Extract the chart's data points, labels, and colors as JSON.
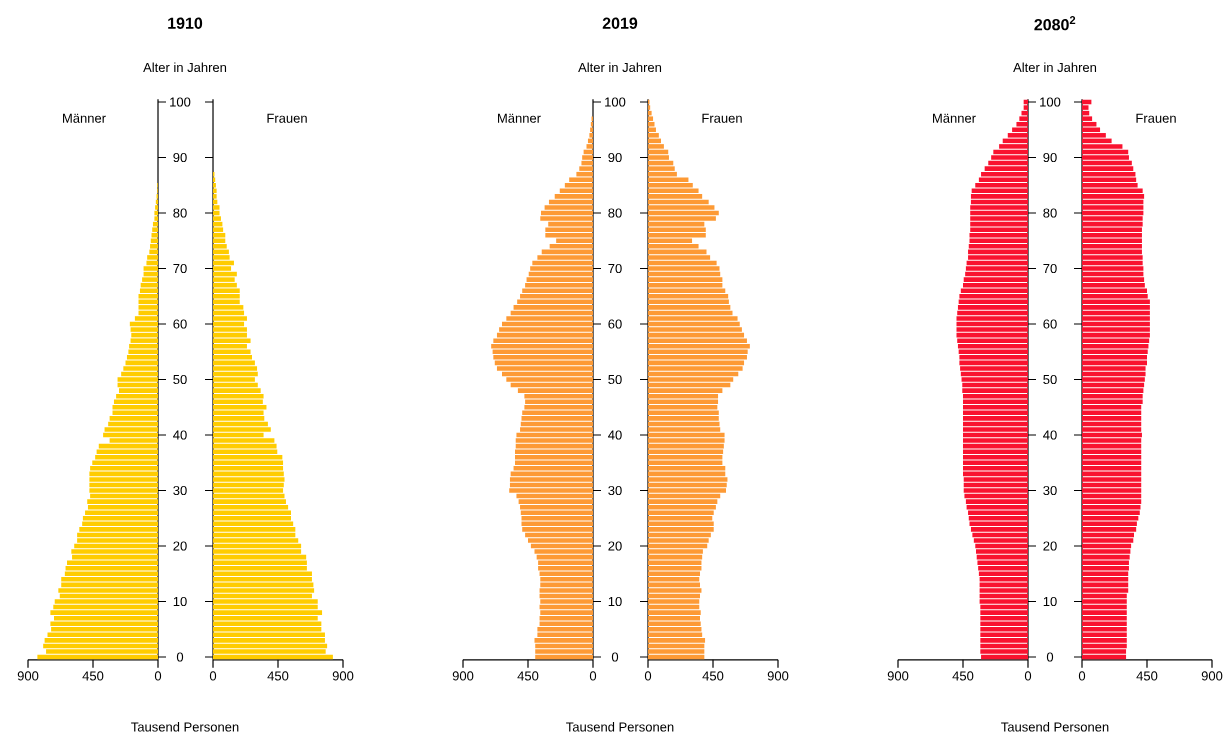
{
  "chart_data": [
    {
      "type": "bar",
      "orientation": "horizontal",
      "title": "1910",
      "ylabel": "Alter in Jahren",
      "xlabel": "Tausend Personen",
      "xlim": [
        900,
        0
      ],
      "xticks": [
        900,
        450,
        0
      ],
      "categories": [
        "100",
        null,
        null,
        null,
        null,
        null,
        null,
        null,
        null,
        null,
        "90",
        null,
        null,
        null,
        null,
        null,
        null,
        null,
        null,
        null,
        "80",
        null,
        null,
        null,
        null,
        null,
        null,
        null,
        null,
        null,
        "70",
        null,
        null,
        null,
        null,
        null,
        null,
        null,
        null,
        null,
        "60",
        null,
        null,
        null,
        null,
        null,
        null,
        null,
        null,
        null,
        "50",
        null,
        null,
        null,
        null,
        null,
        null,
        null,
        null,
        null,
        "40",
        null,
        null,
        null,
        null,
        null,
        null,
        null,
        null,
        null,
        "30",
        null,
        null,
        null,
        null,
        null,
        null,
        null,
        null,
        null,
        "20",
        null,
        null,
        null,
        null,
        null,
        null,
        null,
        null,
        null,
        "10",
        null,
        null,
        null,
        null,
        null,
        null,
        null,
        null,
        null,
        "0"
      ],
      "series": [
        {
          "name": "Männer",
          "color": "#ffcc00",
          "values": [
            0,
            0,
            0,
            0,
            0,
            0,
            0,
            0,
            0,
            0,
            0,
            0,
            0,
            0,
            0,
            5,
            5,
            10,
            15,
            20,
            25,
            25,
            35,
            40,
            45,
            50,
            55,
            60,
            75,
            80,
            100,
            100,
            110,
            120,
            125,
            135,
            135,
            135,
            135,
            160,
            195,
            190,
            185,
            190,
            200,
            205,
            215,
            225,
            240,
            255,
            280,
            280,
            270,
            290,
            305,
            315,
            315,
            335,
            345,
            370,
            380,
            335,
            410,
            425,
            435,
            455,
            470,
            475,
            475,
            475,
            475,
            470,
            490,
            485,
            505,
            520,
            525,
            545,
            560,
            560,
            580,
            600,
            595,
            630,
            640,
            645,
            670,
            670,
            690,
            680,
            715,
            725,
            745,
            720,
            745,
            740,
            765,
            785,
            795,
            775,
            835
          ]
        }
      ]
    },
    {
      "type": "bar",
      "orientation": "horizontal",
      "tick_labels": "x",
      "xlim": [
        0,
        900
      ],
      "xticks": [
        0,
        450,
        900
      ],
      "categories": [
        "100",
        null,
        null,
        null,
        null,
        null,
        null,
        null,
        null,
        null,
        "90",
        null,
        null,
        null,
        null,
        null,
        null,
        null,
        null,
        null,
        "80",
        null,
        null,
        null,
        null,
        null,
        null,
        null,
        null,
        null,
        "70",
        null,
        null,
        null,
        null,
        null,
        null,
        null,
        null,
        null,
        "60",
        null,
        null,
        null,
        null,
        null,
        null,
        null,
        null,
        null,
        "50",
        null,
        null,
        null,
        null,
        null,
        null,
        null,
        null,
        null,
        "40",
        null,
        null,
        null,
        null,
        null,
        null,
        null,
        null,
        null,
        "30",
        null,
        null,
        null,
        null,
        null,
        null,
        null,
        null,
        null,
        "20",
        null,
        null,
        null,
        null,
        null,
        null,
        null,
        null,
        null,
        "10",
        null,
        null,
        null,
        null,
        null,
        null,
        null,
        null,
        null,
        "0"
      ],
      "series": [
        {
          "name": "Frauen",
          "color": "#ffcc00",
          "values": [
            0,
            0,
            0,
            0,
            0,
            0,
            0,
            0,
            0,
            0,
            0,
            0,
            0,
            10,
            15,
            20,
            25,
            25,
            30,
            45,
            45,
            55,
            65,
            70,
            85,
            85,
            95,
            110,
            115,
            145,
            125,
            165,
            150,
            165,
            185,
            185,
            185,
            210,
            215,
            235,
            215,
            235,
            235,
            260,
            235,
            260,
            270,
            290,
            305,
            310,
            290,
            310,
            330,
            350,
            345,
            370,
            350,
            355,
            380,
            400,
            350,
            425,
            440,
            445,
            480,
            485,
            485,
            490,
            495,
            490,
            485,
            495,
            505,
            520,
            540,
            540,
            555,
            570,
            570,
            590,
            610,
            610,
            645,
            650,
            650,
            685,
            685,
            695,
            700,
            685,
            725,
            725,
            755,
            725,
            750,
            750,
            775,
            775,
            790,
            780,
            830
          ]
        }
      ]
    },
    {
      "type": "bar",
      "orientation": "horizontal",
      "title": "2019",
      "ylabel": "Alter in Jahren",
      "xlabel": "Tausend Personen",
      "xlim": [
        900,
        0
      ],
      "xticks": [
        900,
        450,
        0
      ],
      "categories": [
        "100",
        null,
        null,
        null,
        null,
        null,
        null,
        null,
        null,
        null,
        "90",
        null,
        null,
        null,
        null,
        null,
        null,
        null,
        null,
        null,
        "80",
        null,
        null,
        null,
        null,
        null,
        null,
        null,
        null,
        null,
        "70",
        null,
        null,
        null,
        null,
        null,
        null,
        null,
        null,
        null,
        "60",
        null,
        null,
        null,
        null,
        null,
        null,
        null,
        null,
        null,
        "50",
        null,
        null,
        null,
        null,
        null,
        null,
        null,
        null,
        null,
        "40",
        null,
        null,
        null,
        null,
        null,
        null,
        null,
        null,
        null,
        "30",
        null,
        null,
        null,
        null,
        null,
        null,
        null,
        null,
        null,
        "20",
        null,
        null,
        null,
        null,
        null,
        null,
        null,
        null,
        null,
        "10",
        null,
        null,
        null,
        null,
        null,
        null,
        null,
        null,
        null,
        "0"
      ],
      "series": [
        {
          "name": "Männer",
          "color": "#fd9a35",
          "values": [
            0,
            0,
            0,
            10,
            15,
            20,
            25,
            35,
            45,
            65,
            75,
            80,
            95,
            115,
            165,
            195,
            230,
            265,
            305,
            335,
            360,
            365,
            310,
            330,
            330,
            255,
            300,
            355,
            385,
            420,
            435,
            445,
            460,
            470,
            490,
            505,
            525,
            550,
            570,
            600,
            630,
            650,
            665,
            690,
            705,
            695,
            690,
            680,
            665,
            630,
            600,
            570,
            520,
            475,
            470,
            475,
            490,
            495,
            500,
            505,
            530,
            535,
            535,
            540,
            540,
            540,
            550,
            570,
            575,
            575,
            580,
            530,
            515,
            505,
            500,
            495,
            495,
            490,
            470,
            450,
            430,
            405,
            390,
            380,
            380,
            370,
            365,
            365,
            370,
            370,
            365,
            370,
            365,
            370,
            370,
            385,
            385,
            405,
            400,
            400,
            400
          ]
        }
      ]
    },
    {
      "type": "bar",
      "orientation": "horizontal",
      "tick_labels": "x",
      "xlim": [
        0,
        900
      ],
      "xticks": [
        0,
        450,
        900
      ],
      "categories": [
        "100",
        null,
        null,
        null,
        null,
        null,
        null,
        null,
        null,
        null,
        "90",
        null,
        null,
        null,
        null,
        null,
        null,
        null,
        null,
        null,
        "80",
        null,
        null,
        null,
        null,
        null,
        null,
        null,
        null,
        null,
        "70",
        null,
        null,
        null,
        null,
        null,
        null,
        null,
        null,
        null,
        "60",
        null,
        null,
        null,
        null,
        null,
        null,
        null,
        null,
        null,
        "50",
        null,
        null,
        null,
        null,
        null,
        null,
        null,
        null,
        null,
        "40",
        null,
        null,
        null,
        null,
        null,
        null,
        null,
        null,
        null,
        "30",
        null,
        null,
        null,
        null,
        null,
        null,
        null,
        null,
        null,
        "20",
        null,
        null,
        null,
        null,
        null,
        null,
        null,
        null,
        null,
        "10",
        null,
        null,
        null,
        null,
        null,
        null,
        null,
        null,
        null,
        "0"
      ],
      "series": [
        {
          "name": "Frauen",
          "color": "#fd9a35",
          "values": [
            10,
            15,
            25,
            35,
            45,
            55,
            75,
            90,
            110,
            140,
            145,
            175,
            185,
            200,
            280,
            310,
            350,
            375,
            420,
            460,
            490,
            470,
            390,
            400,
            400,
            305,
            350,
            405,
            430,
            475,
            495,
            500,
            515,
            515,
            535,
            555,
            560,
            570,
            585,
            620,
            635,
            650,
            665,
            685,
            705,
            690,
            685,
            665,
            655,
            625,
            590,
            570,
            515,
            485,
            485,
            480,
            490,
            490,
            495,
            500,
            530,
            530,
            525,
            520,
            515,
            515,
            535,
            535,
            550,
            545,
            540,
            500,
            480,
            470,
            455,
            445,
            455,
            455,
            435,
            420,
            410,
            380,
            375,
            370,
            370,
            360,
            355,
            360,
            370,
            360,
            355,
            355,
            365,
            360,
            365,
            370,
            375,
            395,
            390,
            390,
            390
          ]
        }
      ]
    },
    {
      "type": "bar",
      "orientation": "horizontal",
      "title": "2080$^{2}$",
      "ylabel": "Alter in Jahren",
      "xlabel": "Tausend Personen",
      "xlim": [
        900,
        0
      ],
      "xticks": [
        900,
        450,
        0
      ],
      "categories": [
        "100",
        null,
        null,
        null,
        null,
        null,
        null,
        null,
        null,
        null,
        "90",
        null,
        null,
        null,
        null,
        null,
        null,
        null,
        null,
        null,
        "80",
        null,
        null,
        null,
        null,
        null,
        null,
        null,
        null,
        null,
        "70",
        null,
        null,
        null,
        null,
        null,
        null,
        null,
        null,
        null,
        "60",
        null,
        null,
        null,
        null,
        null,
        null,
        null,
        null,
        null,
        "50",
        null,
        null,
        null,
        null,
        null,
        null,
        null,
        null,
        null,
        "40",
        null,
        null,
        null,
        null,
        null,
        null,
        null,
        null,
        null,
        "30",
        null,
        null,
        null,
        null,
        null,
        null,
        null,
        null,
        null,
        "20",
        null,
        null,
        null,
        null,
        null,
        null,
        null,
        null,
        null,
        "10",
        null,
        null,
        null,
        null,
        null,
        null,
        null,
        null,
        null,
        "0"
      ],
      "series": [
        {
          "name": "Männer",
          "color": "#f9122f",
          "values": [
            30,
            30,
            45,
            60,
            80,
            110,
            140,
            175,
            200,
            240,
            255,
            275,
            300,
            325,
            340,
            365,
            390,
            395,
            395,
            400,
            400,
            400,
            400,
            400,
            405,
            405,
            410,
            415,
            415,
            425,
            430,
            435,
            445,
            450,
            465,
            475,
            480,
            485,
            490,
            495,
            495,
            495,
            495,
            490,
            485,
            480,
            475,
            475,
            470,
            465,
            460,
            455,
            455,
            450,
            450,
            450,
            450,
            450,
            450,
            450,
            450,
            450,
            450,
            450,
            450,
            450,
            450,
            450,
            445,
            445,
            445,
            440,
            430,
            425,
            415,
            410,
            405,
            395,
            385,
            375,
            365,
            360,
            355,
            350,
            345,
            340,
            335,
            335,
            335,
            335,
            335,
            330,
            330,
            330,
            330,
            330,
            330,
            330,
            330,
            330,
            325
          ]
        }
      ]
    },
    {
      "type": "bar",
      "orientation": "horizontal",
      "tick_labels": "x",
      "xlim": [
        0,
        900
      ],
      "xticks": [
        0,
        450,
        900
      ],
      "categories": [
        "100",
        null,
        null,
        null,
        null,
        null,
        null,
        null,
        null,
        null,
        "90",
        null,
        null,
        null,
        null,
        null,
        null,
        null,
        null,
        null,
        "80",
        null,
        null,
        null,
        null,
        null,
        null,
        null,
        null,
        null,
        "70",
        null,
        null,
        null,
        null,
        null,
        null,
        null,
        null,
        null,
        "60",
        null,
        null,
        null,
        null,
        null,
        null,
        null,
        null,
        null,
        "50",
        null,
        null,
        null,
        null,
        null,
        null,
        null,
        null,
        null,
        "40",
        null,
        null,
        null,
        null,
        null,
        null,
        null,
        null,
        null,
        "30",
        null,
        null,
        null,
        null,
        null,
        null,
        null,
        null,
        null,
        "20",
        null,
        null,
        null,
        null,
        null,
        null,
        null,
        null,
        null,
        "10",
        null,
        null,
        null,
        null,
        null,
        null,
        null,
        null,
        null,
        "0"
      ],
      "series": [
        {
          "name": "Frauen",
          "color": "#f9122f",
          "values": [
            65,
            45,
            50,
            70,
            100,
            125,
            165,
            205,
            280,
            320,
            325,
            345,
            355,
            370,
            375,
            385,
            420,
            430,
            425,
            425,
            425,
            420,
            420,
            415,
            415,
            415,
            415,
            415,
            420,
            420,
            425,
            425,
            430,
            435,
            450,
            455,
            470,
            470,
            470,
            470,
            470,
            470,
            470,
            465,
            460,
            455,
            450,
            450,
            440,
            440,
            435,
            430,
            425,
            420,
            420,
            410,
            410,
            410,
            410,
            410,
            415,
            410,
            410,
            410,
            410,
            410,
            410,
            410,
            410,
            410,
            410,
            410,
            410,
            405,
            400,
            390,
            380,
            375,
            360,
            355,
            340,
            335,
            330,
            325,
            325,
            320,
            320,
            320,
            320,
            310,
            310,
            310,
            310,
            310,
            310,
            310,
            310,
            310,
            310,
            305,
            305
          ]
        }
      ]
    }
  ]
}
